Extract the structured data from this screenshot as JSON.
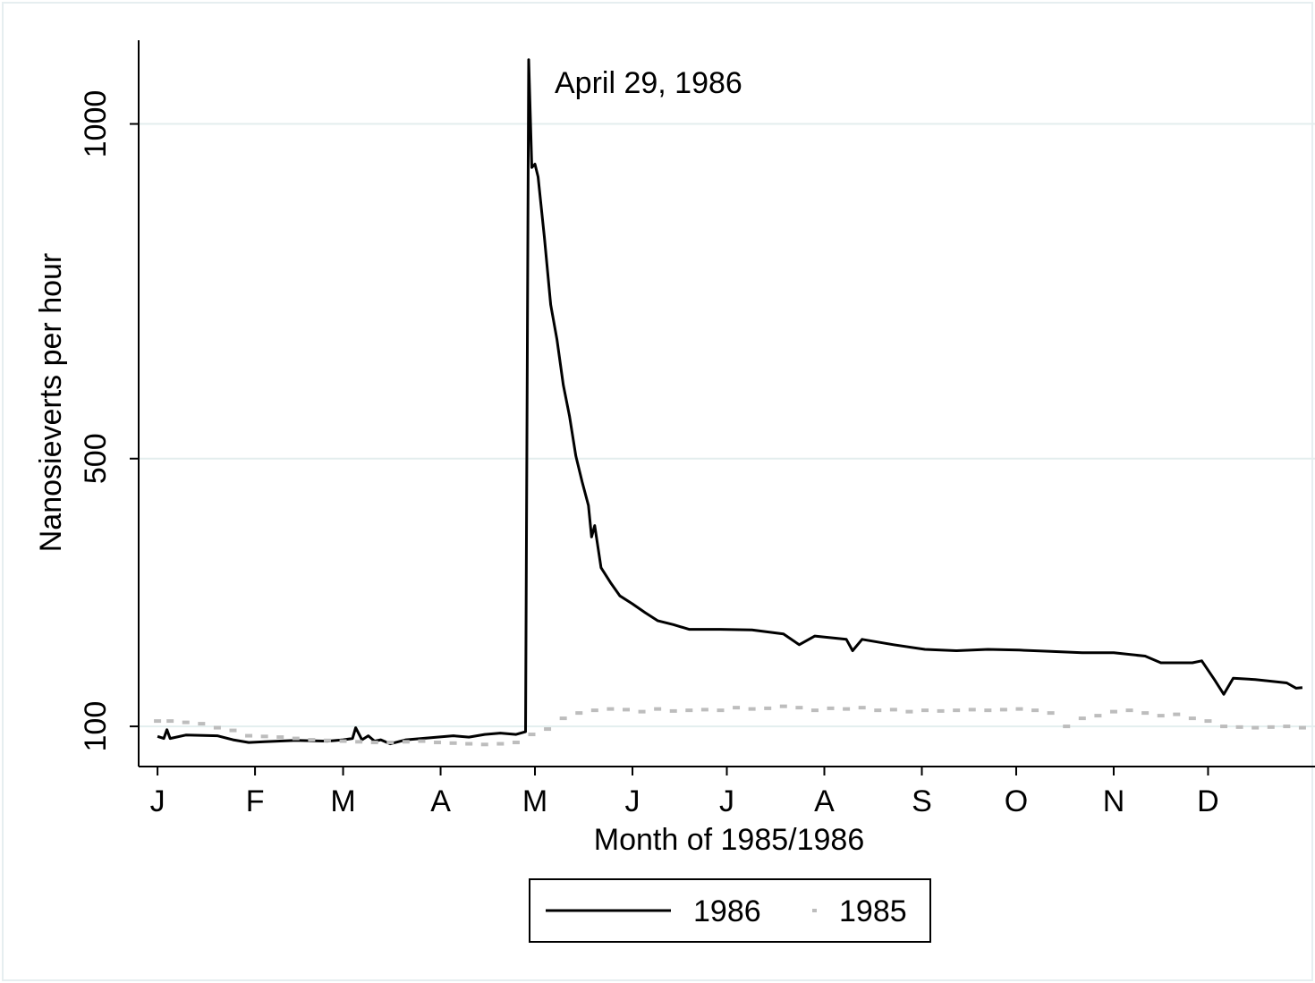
{
  "chart_data": {
    "type": "line",
    "y_label": "Nanosieverts per hour",
    "x_label": "Month of 1985/1986",
    "annotation": "April 29, 1986",
    "xlim": [
      -5,
      369
    ],
    "ylim": [
      40,
      1125
    ],
    "xticks": [
      {
        "value": 1,
        "label": "J"
      },
      {
        "value": 32,
        "label": "F"
      },
      {
        "value": 60,
        "label": "M"
      },
      {
        "value": 91,
        "label": "A"
      },
      {
        "value": 121,
        "label": "M"
      },
      {
        "value": 152,
        "label": "J"
      },
      {
        "value": 182,
        "label": "J"
      },
      {
        "value": 213,
        "label": "A"
      },
      {
        "value": 244,
        "label": "S"
      },
      {
        "value": 274,
        "label": "O"
      },
      {
        "value": 305,
        "label": "N"
      },
      {
        "value": 335,
        "label": "D"
      }
    ],
    "yticks": [
      100,
      500,
      1000
    ],
    "grid": true,
    "series": [
      {
        "name": "1986",
        "color": "#000000",
        "mode": "line",
        "x": [
          1,
          3,
          4,
          5,
          10,
          20,
          25,
          30,
          35,
          45,
          55,
          60,
          63,
          64,
          66,
          68,
          70,
          72,
          75,
          80,
          85,
          90,
          95,
          100,
          105,
          110,
          115,
          118,
          119,
          120,
          121,
          122,
          124,
          126,
          128,
          130,
          132,
          134,
          136,
          138,
          139,
          140,
          142,
          145,
          148,
          152,
          156,
          160,
          165,
          170,
          180,
          190,
          200,
          205,
          210,
          220,
          222,
          225,
          235,
          245,
          255,
          265,
          275,
          285,
          295,
          305,
          315,
          320,
          330,
          333,
          337,
          340,
          343,
          350,
          360,
          363,
          365
        ],
        "values": [
          85,
          82,
          95,
          82,
          87,
          86,
          80,
          76,
          77,
          79,
          78,
          80,
          82,
          98,
          80,
          86,
          78,
          80,
          74,
          80,
          82,
          84,
          86,
          84,
          88,
          90,
          88,
          92,
          1096,
          935,
          940,
          921,
          830,
          730,
          678,
          610,
          563,
          504,
          465,
          430,
          383,
          400,
          337,
          315,
          295,
          283,
          270,
          258,
          252,
          245,
          245,
          244,
          238,
          222,
          235,
          230,
          213,
          230,
          222,
          215,
          213,
          215,
          214,
          212,
          210,
          210,
          205,
          195,
          195,
          198,
          170,
          148,
          172,
          170,
          165,
          157,
          158
        ]
      },
      {
        "name": "1985",
        "color": "#bdbdbd",
        "mode": "markers",
        "x": [
          1,
          5,
          10,
          15,
          20,
          25,
          30,
          35,
          40,
          45,
          50,
          55,
          60,
          65,
          70,
          75,
          80,
          85,
          90,
          95,
          100,
          105,
          110,
          115,
          120,
          125,
          130,
          135,
          140,
          145,
          150,
          155,
          160,
          165,
          170,
          175,
          180,
          185,
          190,
          195,
          200,
          205,
          210,
          215,
          220,
          225,
          230,
          235,
          240,
          245,
          250,
          255,
          260,
          265,
          270,
          275,
          280,
          285,
          290,
          295,
          300,
          305,
          310,
          315,
          320,
          325,
          330,
          335,
          340,
          345,
          350,
          355,
          360,
          365
        ],
        "values": [
          108,
          108,
          106,
          104,
          98,
          94,
          86,
          85,
          84,
          82,
          80,
          79,
          78,
          77,
          76,
          76,
          77,
          78,
          76,
          75,
          74,
          73,
          74,
          76,
          88,
          96,
          112,
          120,
          124,
          126,
          125,
          122,
          126,
          123,
          124,
          125,
          124,
          128,
          126,
          127,
          130,
          128,
          124,
          127,
          126,
          128,
          124,
          125,
          122,
          124,
          123,
          124,
          125,
          124,
          125,
          126,
          124,
          120,
          100,
          112,
          116,
          122,
          124,
          120,
          116,
          118,
          112,
          108,
          100,
          99,
          98,
          99,
          100,
          98
        ]
      }
    ]
  }
}
